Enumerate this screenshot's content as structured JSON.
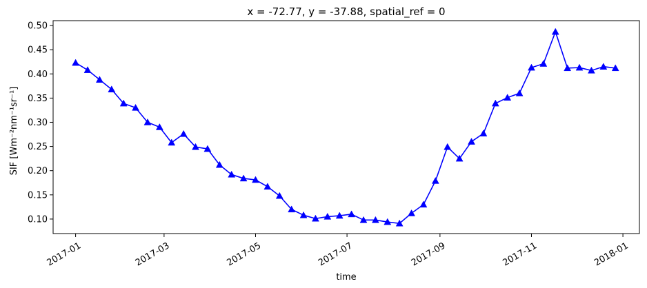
{
  "chart_data": {
    "type": "line",
    "title": "x = -72.77, y = -37.88, spatial_ref = 0",
    "xlabel": "time",
    "ylabel": "SIF [Wm⁻²nm⁻¹sr⁻¹]",
    "grid": false,
    "legend": "none",
    "color": "#0000ff",
    "marker": "triangle-up",
    "xlim": [
      "2016-12-17",
      "2018-01-12"
    ],
    "ylim": [
      0.07,
      0.51
    ],
    "xticks": [
      "2017-01-01",
      "2017-03-01",
      "2017-05-01",
      "2017-07-01",
      "2017-09-01",
      "2017-11-01",
      "2018-01-01"
    ],
    "xtick_labels": [
      "2017-01",
      "2017-03",
      "2017-05",
      "2017-07",
      "2017-09",
      "2017-11",
      "2018-01"
    ],
    "yticks": [
      0.1,
      0.15,
      0.2,
      0.25,
      0.3,
      0.35,
      0.4,
      0.45,
      0.5
    ],
    "ytick_labels": [
      "0.10",
      "0.15",
      "0.20",
      "0.25",
      "0.30",
      "0.35",
      "0.40",
      "0.45",
      "0.50"
    ],
    "series": [
      {
        "x": [
          "2017-01-01",
          "2017-01-09",
          "2017-01-17",
          "2017-01-25",
          "2017-02-02",
          "2017-02-10",
          "2017-02-18",
          "2017-02-26",
          "2017-03-06",
          "2017-03-14",
          "2017-03-22",
          "2017-03-30",
          "2017-04-07",
          "2017-04-15",
          "2017-04-23",
          "2017-05-01",
          "2017-05-09",
          "2017-05-17",
          "2017-05-25",
          "2017-06-02",
          "2017-06-10",
          "2017-06-18",
          "2017-06-26",
          "2017-07-04",
          "2017-07-12",
          "2017-07-20",
          "2017-07-28",
          "2017-08-05",
          "2017-08-13",
          "2017-08-21",
          "2017-08-29",
          "2017-09-06",
          "2017-09-14",
          "2017-09-22",
          "2017-09-30",
          "2017-10-08",
          "2017-10-16",
          "2017-10-24",
          "2017-11-01",
          "2017-11-09",
          "2017-11-17",
          "2017-11-25",
          "2017-12-03",
          "2017-12-11",
          "2017-12-19",
          "2017-12-27"
        ],
        "values": [
          0.423,
          0.408,
          0.388,
          0.368,
          0.339,
          0.33,
          0.3,
          0.29,
          0.258,
          0.276,
          0.249,
          0.245,
          0.212,
          0.192,
          0.184,
          0.181,
          0.167,
          0.148,
          0.12,
          0.108,
          0.101,
          0.105,
          0.107,
          0.11,
          0.098,
          0.098,
          0.094,
          0.091,
          0.112,
          0.13,
          0.179,
          0.249,
          0.225,
          0.26,
          0.277,
          0.339,
          0.351,
          0.36,
          0.413,
          0.421,
          0.487,
          0.412,
          0.413,
          0.407,
          0.415,
          0.412
        ]
      }
    ]
  }
}
